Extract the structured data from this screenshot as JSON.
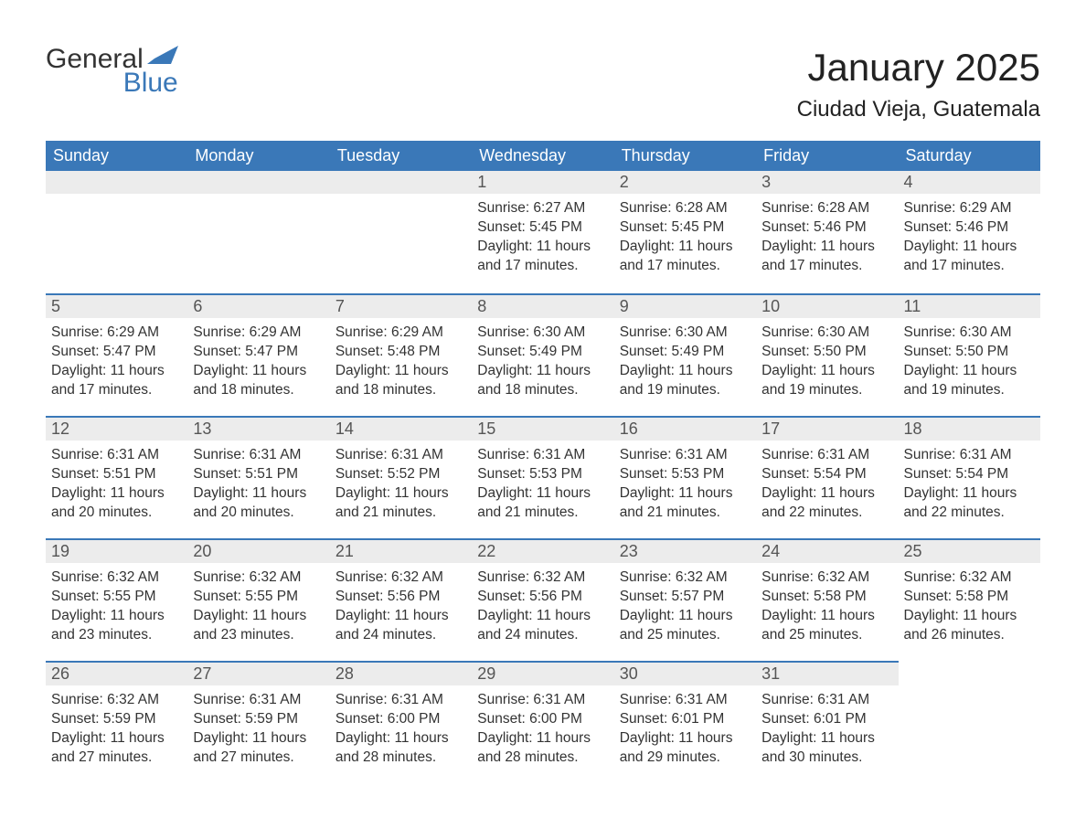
{
  "brand": {
    "line1": "General",
    "line2": "Blue",
    "accent_color": "#3a78b8"
  },
  "title": "January 2025",
  "location": "Ciudad Vieja, Guatemala",
  "columns": [
    "Sunday",
    "Monday",
    "Tuesday",
    "Wednesday",
    "Thursday",
    "Friday",
    "Saturday"
  ],
  "colors": {
    "header_bg": "#3a78b8",
    "header_text": "#ffffff",
    "daynum_bg": "#ececec",
    "daynum_text": "#555555",
    "body_text": "#333333",
    "rule": "#3a78b8",
    "page_bg": "#ffffff"
  },
  "weeks": [
    [
      null,
      null,
      null,
      {
        "n": "1",
        "sunrise": "Sunrise: 6:27 AM",
        "sunset": "Sunset: 5:45 PM",
        "dl1": "Daylight: 11 hours",
        "dl2": "and 17 minutes."
      },
      {
        "n": "2",
        "sunrise": "Sunrise: 6:28 AM",
        "sunset": "Sunset: 5:45 PM",
        "dl1": "Daylight: 11 hours",
        "dl2": "and 17 minutes."
      },
      {
        "n": "3",
        "sunrise": "Sunrise: 6:28 AM",
        "sunset": "Sunset: 5:46 PM",
        "dl1": "Daylight: 11 hours",
        "dl2": "and 17 minutes."
      },
      {
        "n": "4",
        "sunrise": "Sunrise: 6:29 AM",
        "sunset": "Sunset: 5:46 PM",
        "dl1": "Daylight: 11 hours",
        "dl2": "and 17 minutes."
      }
    ],
    [
      {
        "n": "5",
        "sunrise": "Sunrise: 6:29 AM",
        "sunset": "Sunset: 5:47 PM",
        "dl1": "Daylight: 11 hours",
        "dl2": "and 17 minutes."
      },
      {
        "n": "6",
        "sunrise": "Sunrise: 6:29 AM",
        "sunset": "Sunset: 5:47 PM",
        "dl1": "Daylight: 11 hours",
        "dl2": "and 18 minutes."
      },
      {
        "n": "7",
        "sunrise": "Sunrise: 6:29 AM",
        "sunset": "Sunset: 5:48 PM",
        "dl1": "Daylight: 11 hours",
        "dl2": "and 18 minutes."
      },
      {
        "n": "8",
        "sunrise": "Sunrise: 6:30 AM",
        "sunset": "Sunset: 5:49 PM",
        "dl1": "Daylight: 11 hours",
        "dl2": "and 18 minutes."
      },
      {
        "n": "9",
        "sunrise": "Sunrise: 6:30 AM",
        "sunset": "Sunset: 5:49 PM",
        "dl1": "Daylight: 11 hours",
        "dl2": "and 19 minutes."
      },
      {
        "n": "10",
        "sunrise": "Sunrise: 6:30 AM",
        "sunset": "Sunset: 5:50 PM",
        "dl1": "Daylight: 11 hours",
        "dl2": "and 19 minutes."
      },
      {
        "n": "11",
        "sunrise": "Sunrise: 6:30 AM",
        "sunset": "Sunset: 5:50 PM",
        "dl1": "Daylight: 11 hours",
        "dl2": "and 19 minutes."
      }
    ],
    [
      {
        "n": "12",
        "sunrise": "Sunrise: 6:31 AM",
        "sunset": "Sunset: 5:51 PM",
        "dl1": "Daylight: 11 hours",
        "dl2": "and 20 minutes."
      },
      {
        "n": "13",
        "sunrise": "Sunrise: 6:31 AM",
        "sunset": "Sunset: 5:51 PM",
        "dl1": "Daylight: 11 hours",
        "dl2": "and 20 minutes."
      },
      {
        "n": "14",
        "sunrise": "Sunrise: 6:31 AM",
        "sunset": "Sunset: 5:52 PM",
        "dl1": "Daylight: 11 hours",
        "dl2": "and 21 minutes."
      },
      {
        "n": "15",
        "sunrise": "Sunrise: 6:31 AM",
        "sunset": "Sunset: 5:53 PM",
        "dl1": "Daylight: 11 hours",
        "dl2": "and 21 minutes."
      },
      {
        "n": "16",
        "sunrise": "Sunrise: 6:31 AM",
        "sunset": "Sunset: 5:53 PM",
        "dl1": "Daylight: 11 hours",
        "dl2": "and 21 minutes."
      },
      {
        "n": "17",
        "sunrise": "Sunrise: 6:31 AM",
        "sunset": "Sunset: 5:54 PM",
        "dl1": "Daylight: 11 hours",
        "dl2": "and 22 minutes."
      },
      {
        "n": "18",
        "sunrise": "Sunrise: 6:31 AM",
        "sunset": "Sunset: 5:54 PM",
        "dl1": "Daylight: 11 hours",
        "dl2": "and 22 minutes."
      }
    ],
    [
      {
        "n": "19",
        "sunrise": "Sunrise: 6:32 AM",
        "sunset": "Sunset: 5:55 PM",
        "dl1": "Daylight: 11 hours",
        "dl2": "and 23 minutes."
      },
      {
        "n": "20",
        "sunrise": "Sunrise: 6:32 AM",
        "sunset": "Sunset: 5:55 PM",
        "dl1": "Daylight: 11 hours",
        "dl2": "and 23 minutes."
      },
      {
        "n": "21",
        "sunrise": "Sunrise: 6:32 AM",
        "sunset": "Sunset: 5:56 PM",
        "dl1": "Daylight: 11 hours",
        "dl2": "and 24 minutes."
      },
      {
        "n": "22",
        "sunrise": "Sunrise: 6:32 AM",
        "sunset": "Sunset: 5:56 PM",
        "dl1": "Daylight: 11 hours",
        "dl2": "and 24 minutes."
      },
      {
        "n": "23",
        "sunrise": "Sunrise: 6:32 AM",
        "sunset": "Sunset: 5:57 PM",
        "dl1": "Daylight: 11 hours",
        "dl2": "and 25 minutes."
      },
      {
        "n": "24",
        "sunrise": "Sunrise: 6:32 AM",
        "sunset": "Sunset: 5:58 PM",
        "dl1": "Daylight: 11 hours",
        "dl2": "and 25 minutes."
      },
      {
        "n": "25",
        "sunrise": "Sunrise: 6:32 AM",
        "sunset": "Sunset: 5:58 PM",
        "dl1": "Daylight: 11 hours",
        "dl2": "and 26 minutes."
      }
    ],
    [
      {
        "n": "26",
        "sunrise": "Sunrise: 6:32 AM",
        "sunset": "Sunset: 5:59 PM",
        "dl1": "Daylight: 11 hours",
        "dl2": "and 27 minutes."
      },
      {
        "n": "27",
        "sunrise": "Sunrise: 6:31 AM",
        "sunset": "Sunset: 5:59 PM",
        "dl1": "Daylight: 11 hours",
        "dl2": "and 27 minutes."
      },
      {
        "n": "28",
        "sunrise": "Sunrise: 6:31 AM",
        "sunset": "Sunset: 6:00 PM",
        "dl1": "Daylight: 11 hours",
        "dl2": "and 28 minutes."
      },
      {
        "n": "29",
        "sunrise": "Sunrise: 6:31 AM",
        "sunset": "Sunset: 6:00 PM",
        "dl1": "Daylight: 11 hours",
        "dl2": "and 28 minutes."
      },
      {
        "n": "30",
        "sunrise": "Sunrise: 6:31 AM",
        "sunset": "Sunset: 6:01 PM",
        "dl1": "Daylight: 11 hours",
        "dl2": "and 29 minutes."
      },
      {
        "n": "31",
        "sunrise": "Sunrise: 6:31 AM",
        "sunset": "Sunset: 6:01 PM",
        "dl1": "Daylight: 11 hours",
        "dl2": "and 30 minutes."
      },
      null
    ]
  ]
}
